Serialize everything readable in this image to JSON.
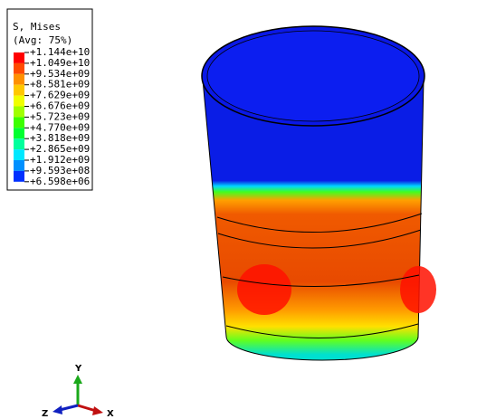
{
  "legend": {
    "title": "S, Mises",
    "subtitle": "(Avg: 75%)",
    "labels": [
      "+1.144e+10",
      "+1.049e+10",
      "+9.534e+09",
      "+8.581e+09",
      "+7.629e+09",
      "+6.676e+09",
      "+5.723e+09",
      "+4.770e+09",
      "+3.818e+09",
      "+2.865e+09",
      "+1.912e+09",
      "+9.593e+08",
      "+6.598e+06"
    ],
    "colors": [
      "#ff0000",
      "#ff4a00",
      "#ff9000",
      "#ffc800",
      "#f0ff00",
      "#a0ff00",
      "#3cff00",
      "#00ff30",
      "#00ff9c",
      "#00e8ff",
      "#0090ff",
      "#0030ff"
    ]
  },
  "triad": {
    "y": "Y",
    "z": "Z",
    "x": "X"
  }
}
